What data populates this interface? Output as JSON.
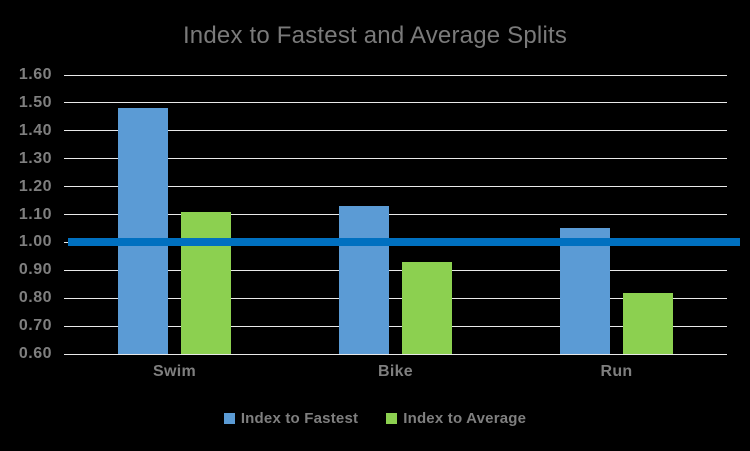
{
  "chart_data": {
    "type": "bar",
    "title": "Index to Fastest and Average Splits",
    "categories": [
      "Swim",
      "Bike",
      "Run"
    ],
    "series": [
      {
        "name": "Index to Fastest",
        "color": "#5B9BD5",
        "values": [
          1.48,
          1.13,
          1.05
        ]
      },
      {
        "name": "Index to Average",
        "color": "#8CD050",
        "values": [
          1.11,
          0.93,
          0.82
        ]
      }
    ],
    "reference_line": {
      "value": 1.0,
      "color": "#0070C0"
    },
    "ylim": [
      0.6,
      1.6
    ],
    "ytick_step": 0.1,
    "ytick_labels": [
      "0.60",
      "0.70",
      "0.80",
      "0.90",
      "1.00",
      "1.10",
      "1.20",
      "1.30",
      "1.40",
      "1.50",
      "1.60"
    ],
    "grid": true,
    "legend_position": "bottom",
    "background_color": "#000000",
    "text_color": "#7F7F7F",
    "gridline_color": "#E9E9E9"
  }
}
